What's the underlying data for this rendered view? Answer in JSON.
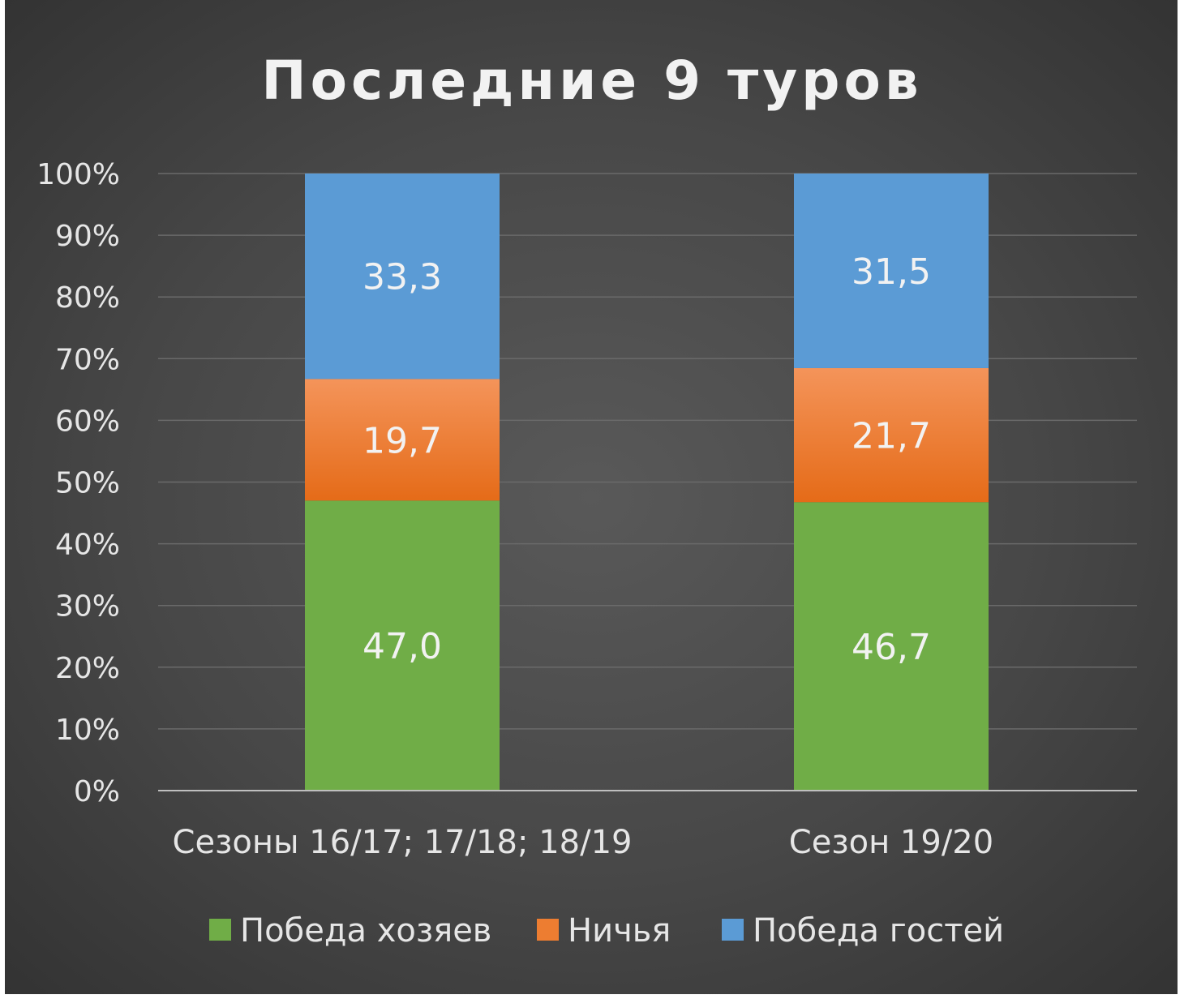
{
  "chart_data": {
    "type": "bar",
    "stacked": "percent",
    "title": "Последние 9 туров",
    "categories": [
      "Сезоны 16/17; 17/18; 18/19",
      "Сезон 19/20"
    ],
    "series": [
      {
        "name": "Победа хозяев",
        "values": [
          47.0,
          46.7
        ],
        "labels": [
          "47,0",
          "46,7"
        ],
        "color": "#70ad47"
      },
      {
        "name": "Ничья",
        "values": [
          19.7,
          21.7
        ],
        "labels": [
          "19,7",
          "21,7"
        ],
        "color": "#ed7d31"
      },
      {
        "name": "Победа гостей",
        "values": [
          33.3,
          31.5
        ],
        "labels": [
          "33,3",
          "31,5"
        ],
        "color": "#5b9bd5"
      }
    ],
    "y_ticks": [
      "0%",
      "10%",
      "20%",
      "30%",
      "40%",
      "50%",
      "60%",
      "70%",
      "80%",
      "90%",
      "100%"
    ],
    "ylim": [
      0,
      100
    ],
    "grid": true,
    "legend": "bottom"
  }
}
